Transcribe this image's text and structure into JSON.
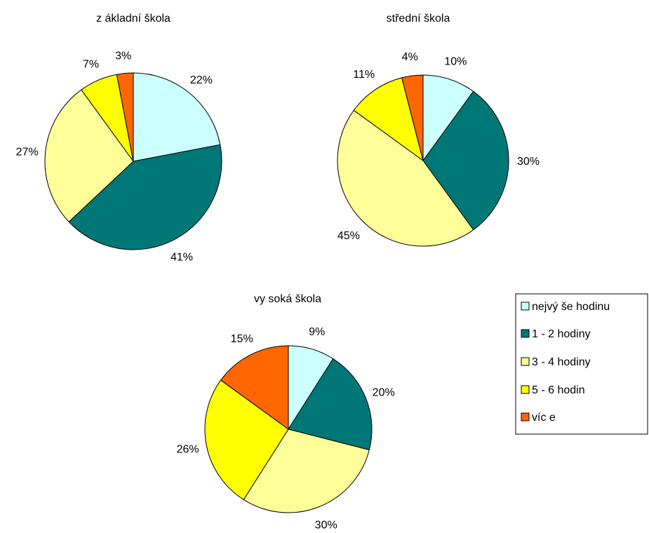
{
  "legend": {
    "entries": [
      "nejvý še hodinu",
      "1 - 2 hodiny",
      "3 - 4 hodiny",
      "5 - 6 hodin",
      "víc e"
    ],
    "colors": [
      "#ccffff",
      "#007777",
      "#ffff99",
      "#ffff00",
      "#ff6600"
    ]
  },
  "chart_data": [
    {
      "type": "pie",
      "title": "z ákladní škola",
      "categories": [
        "nejvý še hodinu",
        "1 - 2 hodiny",
        "3 - 4 hodiny",
        "5 - 6 hodin",
        "víc e"
      ],
      "values": [
        22,
        41,
        27,
        7,
        3
      ],
      "labels": [
        "22%",
        "41%",
        "27%",
        "7%",
        "3%"
      ]
    },
    {
      "type": "pie",
      "title": "střední škola",
      "categories": [
        "nejvý še hodinu",
        "1 - 2 hodiny",
        "3 - 4 hodiny",
        "5 - 6 hodin",
        "víc e"
      ],
      "values": [
        10,
        30,
        45,
        11,
        4
      ],
      "labels": [
        "10%",
        "30%",
        "45%",
        "11%",
        "4%"
      ]
    },
    {
      "type": "pie",
      "title": "vy soká škola",
      "categories": [
        "nejvý še hodinu",
        "1 - 2 hodiny",
        "3 - 4 hodiny",
        "5 - 6 hodin",
        "víc e"
      ],
      "values": [
        9,
        20,
        30,
        26,
        15
      ],
      "labels": [
        "9%",
        "20%",
        "30%",
        "26%",
        "15%"
      ]
    }
  ]
}
